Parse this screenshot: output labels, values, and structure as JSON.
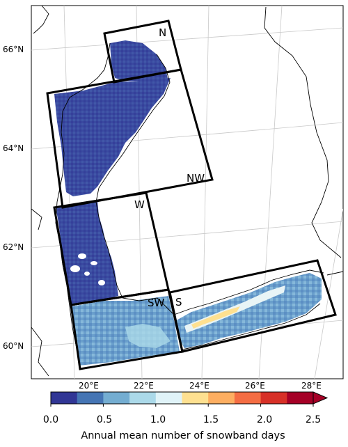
{
  "map": {
    "lat_labels": [
      "66°N",
      "64°N",
      "62°N",
      "60°N"
    ],
    "lon_labels": [
      "20°E",
      "22°E",
      "24°E",
      "26°E",
      "28°E"
    ],
    "regions": [
      "N",
      "NW",
      "W",
      "SW",
      "S"
    ]
  },
  "colorbar": {
    "title": "Annual mean number of snowband days",
    "ticks": [
      "0.0",
      "0.5",
      "1.0",
      "1.5",
      "2.0",
      "2.5"
    ],
    "colors": [
      "#313695",
      "#4575b4",
      "#74add1",
      "#abd9e9",
      "#e0f3f8",
      "#fee090",
      "#fdae61",
      "#f46d43",
      "#d73027",
      "#a50026"
    ],
    "extend": "max"
  },
  "colors": {
    "land_border": "#000000",
    "grid": "#c8c8c8",
    "box_outline": "#000000"
  }
}
